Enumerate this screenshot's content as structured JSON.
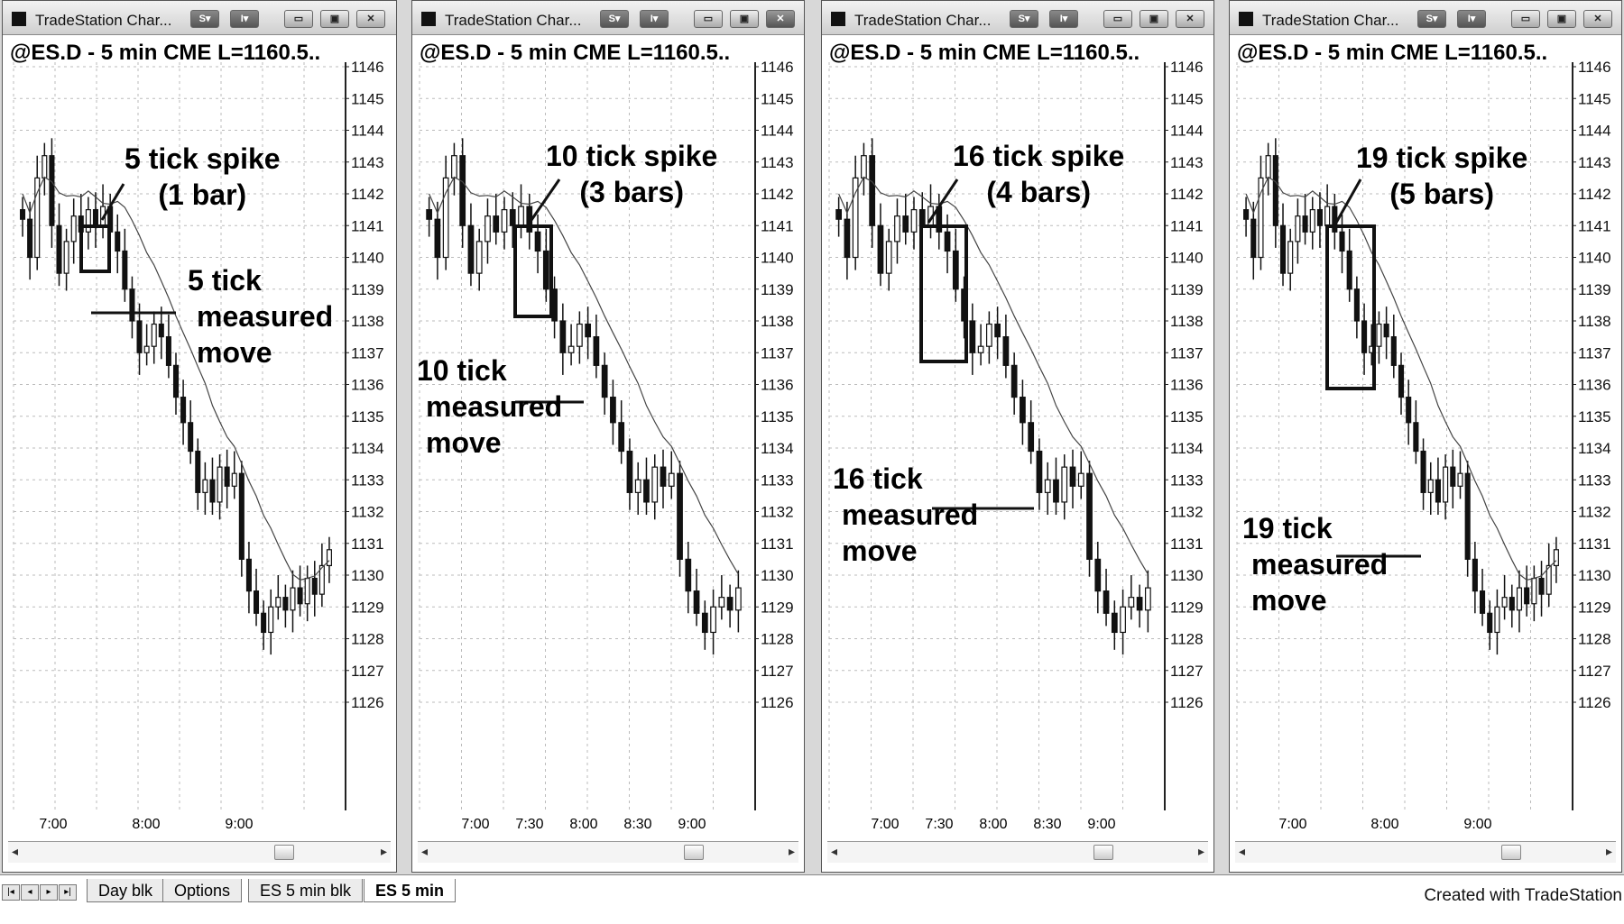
{
  "tabs": {
    "nav_icons": [
      "first-tab-icon",
      "prev-tab-icon",
      "next-tab-icon",
      "last-tab-icon"
    ],
    "items": [
      {
        "label": "Day blk"
      },
      {
        "label": "Options"
      },
      {
        "label": "ES 5 min blk"
      },
      {
        "label": "ES 5 min",
        "active": true
      }
    ]
  },
  "footer": {
    "credit": "Created with TradeStation"
  },
  "windows": [
    {
      "title": "TradeStation Char...",
      "header": "@ES.D - 5 min CME  L=1160.5..",
      "price_labels": [
        "1146",
        "1145",
        "1144",
        "1143",
        "1142",
        "1141",
        "1140",
        "1139",
        "1138",
        "1137",
        "1136",
        "1135",
        "1134",
        "1133",
        "1132",
        "1131",
        "1130",
        "1129",
        "1128",
        "1127",
        "1126"
      ],
      "time_labels": [
        "7:00",
        "8:00",
        "9:00"
      ],
      "annotations": {
        "spike": [
          "5 tick spike",
          "(1 bar)"
        ],
        "move": [
          "5 tick",
          "measured",
          "move"
        ]
      }
    },
    {
      "title": "TradeStation Char...",
      "header": "@ES.D - 5 min CME  L=1160.5..",
      "price_labels": [
        "1146",
        "1145",
        "1144",
        "1143",
        "1142",
        "1141",
        "1140",
        "1139",
        "1138",
        "1137",
        "1136",
        "1135",
        "1134",
        "1133",
        "1132",
        "1131",
        "1130",
        "1129",
        "1128",
        "1127",
        "1126"
      ],
      "time_labels": [
        "7:00",
        "7:30",
        "8:00",
        "8:30",
        "9:00"
      ],
      "annotations": {
        "spike": [
          "10 tick spike",
          "(3 bars)"
        ],
        "move": [
          "10 tick",
          "measured",
          "move"
        ]
      }
    },
    {
      "title": "TradeStation Char...",
      "header": "@ES.D - 5 min CME  L=1160.5..",
      "price_labels": [
        "1146",
        "1145",
        "1144",
        "1143",
        "1142",
        "1141",
        "1140",
        "1139",
        "1138",
        "1137",
        "1136",
        "1135",
        "1134",
        "1133",
        "1132",
        "1131",
        "1130",
        "1129",
        "1128",
        "1127",
        "1126"
      ],
      "time_labels": [
        "7:00",
        "7:30",
        "8:00",
        "8:30",
        "9:00"
      ],
      "annotations": {
        "spike": [
          "16 tick spike",
          "(4 bars)"
        ],
        "move": [
          "16 tick",
          "measured",
          "move"
        ]
      }
    },
    {
      "title": "TradeStation Char...",
      "header": "@ES.D - 5 min CME  L=1160.5..",
      "price_labels": [
        "1146",
        "1145",
        "1144",
        "1143",
        "1142",
        "1141",
        "1140",
        "1139",
        "1138",
        "1137",
        "1136",
        "1135",
        "1134",
        "1133",
        "1132",
        "1131",
        "1130",
        "1129",
        "1128",
        "1127",
        "1126"
      ],
      "time_labels": [
        "7:00",
        "8:00",
        "9:00"
      ],
      "annotations": {
        "spike": [
          "19 tick spike",
          "(5 bars)"
        ],
        "move": [
          "19 tick",
          "measured",
          "move"
        ]
      }
    }
  ],
  "chart_data": [
    {
      "type": "candlestick",
      "symbol": "@ES.D",
      "interval": "5 min",
      "ylim": [
        1126,
        1146
      ],
      "x": [
        "7:00",
        "8:00",
        "9:00"
      ],
      "closes": [
        1141.2,
        1140.0,
        1142.5,
        1143.2,
        1141.0,
        1139.5,
        1140.5,
        1141.3,
        1140.8,
        1141.5,
        1141.0,
        1141.6,
        1140.8,
        1140.2,
        1139.0,
        1138.0,
        1137.0,
        1137.2,
        1137.9,
        1137.5,
        1136.6,
        1135.6,
        1134.8,
        1133.9,
        1132.6,
        1133.0,
        1132.3,
        1133.4,
        1132.8,
        1133.2,
        1130.5,
        1129.5,
        1128.8,
        1128.2,
        1129.0,
        1129.3,
        1128.9,
        1129.6,
        1129.1,
        1129.9,
        1129.4,
        1130.3,
        1130.8
      ],
      "moving_average": true
    },
    {
      "type": "candlestick",
      "symbol": "@ES.D",
      "interval": "5 min",
      "ylim": [
        1126,
        1146
      ],
      "x": [
        "7:00",
        "7:30",
        "8:00",
        "8:30",
        "9:00"
      ],
      "closes": [
        1141.2,
        1140.0,
        1142.5,
        1143.2,
        1141.0,
        1139.5,
        1140.5,
        1141.3,
        1140.8,
        1141.5,
        1141.0,
        1141.6,
        1140.8,
        1140.2,
        1139.0,
        1138.0,
        1137.0,
        1137.2,
        1137.9,
        1137.5,
        1136.6,
        1135.6,
        1134.8,
        1133.9,
        1132.6,
        1133.0,
        1132.3,
        1133.4,
        1132.8,
        1133.2,
        1130.5,
        1129.5,
        1128.8,
        1128.2,
        1129.0,
        1129.3,
        1128.9,
        1129.6
      ],
      "moving_average": true
    },
    {
      "type": "candlestick",
      "symbol": "@ES.D",
      "interval": "5 min",
      "ylim": [
        1126,
        1146
      ],
      "x": [
        "7:00",
        "7:30",
        "8:00",
        "8:30",
        "9:00"
      ],
      "closes": [
        1141.2,
        1140.0,
        1142.5,
        1143.2,
        1141.0,
        1139.5,
        1140.5,
        1141.3,
        1140.8,
        1141.5,
        1141.0,
        1141.6,
        1140.8,
        1140.2,
        1139.0,
        1138.0,
        1137.0,
        1137.2,
        1137.9,
        1137.5,
        1136.6,
        1135.6,
        1134.8,
        1133.9,
        1132.6,
        1133.0,
        1132.3,
        1133.4,
        1132.8,
        1133.2,
        1130.5,
        1129.5,
        1128.8,
        1128.2,
        1129.0,
        1129.3,
        1128.9,
        1129.6
      ],
      "moving_average": true
    },
    {
      "type": "candlestick",
      "symbol": "@ES.D",
      "interval": "5 min",
      "ylim": [
        1126,
        1146
      ],
      "x": [
        "7:00",
        "8:00",
        "9:00"
      ],
      "closes": [
        1141.2,
        1140.0,
        1142.5,
        1143.2,
        1141.0,
        1139.5,
        1140.5,
        1141.3,
        1140.8,
        1141.5,
        1141.0,
        1141.6,
        1140.8,
        1140.2,
        1139.0,
        1138.0,
        1137.0,
        1137.2,
        1137.9,
        1137.5,
        1136.6,
        1135.6,
        1134.8,
        1133.9,
        1132.6,
        1133.0,
        1132.3,
        1133.4,
        1132.8,
        1133.2,
        1130.5,
        1129.5,
        1128.8,
        1128.2,
        1129.0,
        1129.3,
        1128.9,
        1129.6,
        1129.1,
        1129.9,
        1129.4,
        1130.3,
        1130.8
      ],
      "moving_average": true
    }
  ]
}
